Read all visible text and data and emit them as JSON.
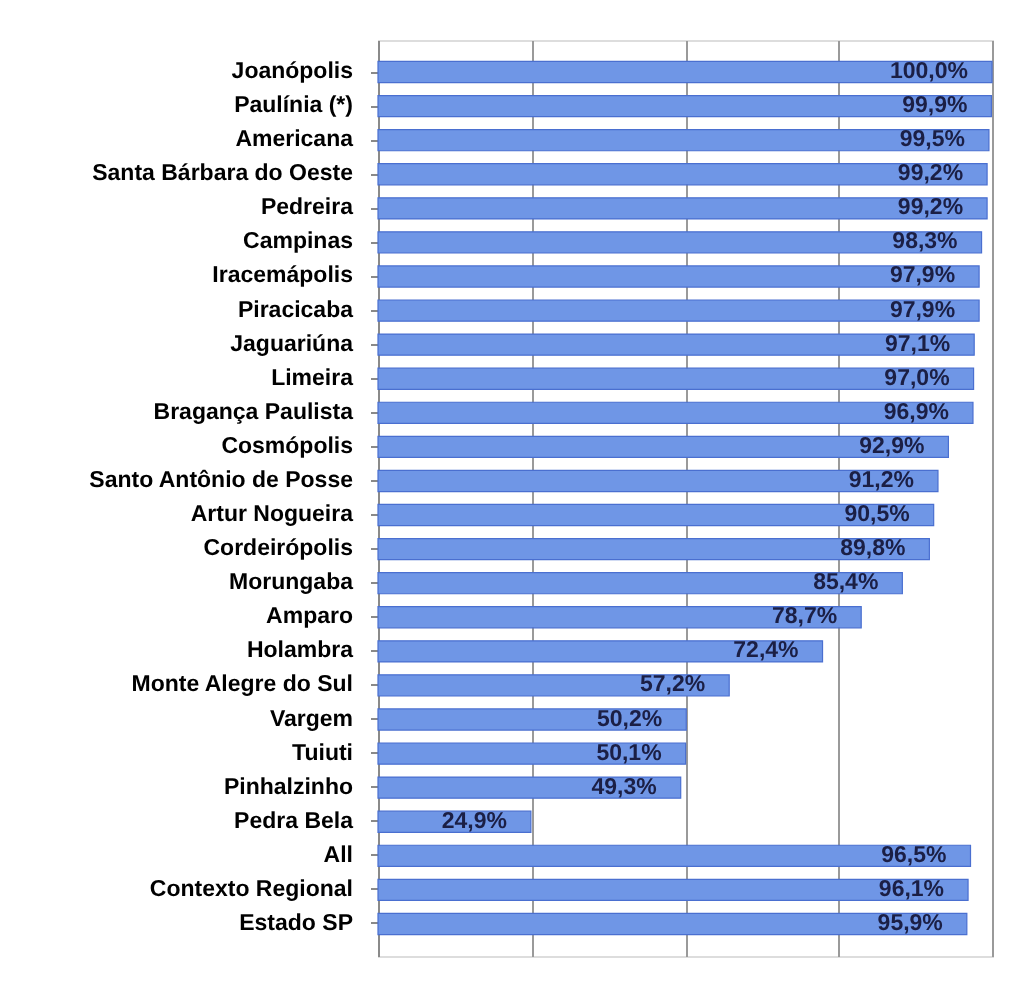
{
  "chart_data": {
    "type": "bar",
    "orientation": "horizontal",
    "categories": [
      "Joanópolis",
      "Paulínia (*)",
      "Americana",
      "Santa Bárbara do Oeste",
      "Pedreira",
      "Campinas",
      "Iracemápolis",
      "Piracicaba",
      "Jaguariúna",
      "Limeira",
      "Bragança Paulista",
      "Cosmópolis",
      "Santo Antônio de Posse",
      "Artur Nogueira",
      "Cordeirópolis",
      "Morungaba",
      "Amparo",
      "Holambra",
      "Monte Alegre do Sul",
      "Vargem",
      "Tuiuti",
      "Pinhalzinho",
      "Pedra Bela",
      "All",
      "Contexto Regional",
      "Estado SP"
    ],
    "values": [
      100.0,
      99.9,
      99.5,
      99.2,
      99.2,
      98.3,
      97.9,
      97.9,
      97.1,
      97.0,
      96.9,
      92.9,
      91.2,
      90.5,
      89.8,
      85.4,
      78.7,
      72.4,
      57.2,
      50.2,
      50.1,
      49.3,
      24.9,
      96.5,
      96.1,
      95.9
    ],
    "value_labels": [
      "100,0%",
      "99,9%",
      "99,5%",
      "99,2%",
      "99,2%",
      "98,3%",
      "97,9%",
      "97,9%",
      "97,1%",
      "97,0%",
      "96,9%",
      "92,9%",
      "91,2%",
      "90,5%",
      "89,8%",
      "85,4%",
      "78,7%",
      "72,4%",
      "57,2%",
      "50,2%",
      "50,1%",
      "49,3%",
      "24,9%",
      "96,5%",
      "96,1%",
      "95,9%"
    ],
    "color": "#6f96e6",
    "xlim": [
      0,
      100
    ],
    "xticks": [
      {
        "value": 0,
        "label": null
      },
      {
        "value": 25,
        "label": null
      },
      {
        "value": 50,
        "label": null
      },
      {
        "value": 75,
        "label": null
      },
      {
        "value": 100,
        "label": null
      }
    ],
    "grid": "x",
    "tick_labels": "y"
  }
}
